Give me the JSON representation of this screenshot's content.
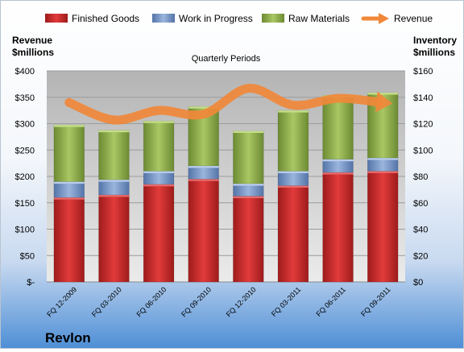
{
  "chart_data": {
    "type": "bar",
    "subtitle": "Quarterly Periods",
    "company": "Revlon",
    "categories": [
      "FQ 12-2009",
      "FQ 03-2010",
      "FQ 06-2010",
      "FQ 09-2010",
      "FQ 12-2010",
      "FQ 03-2011",
      "FQ 06-2011",
      "FQ 09-2011"
    ],
    "stacked": true,
    "series": [
      {
        "name": "Finished Goods",
        "axis": "right",
        "color": "#cc2a2a",
        "values": [
          64,
          66,
          74,
          78,
          65,
          73,
          83,
          84
        ]
      },
      {
        "name": "Work in Progress",
        "axis": "right",
        "color": "#7b9ac9",
        "values": [
          12,
          11.5,
          10,
          10,
          9.5,
          11,
          10,
          10
        ]
      },
      {
        "name": "Raw Materials",
        "axis": "right",
        "color": "#8fb04c",
        "values": [
          43,
          37.5,
          38,
          45,
          40,
          46,
          48.5,
          49.5
        ]
      },
      {
        "name": "Revenue",
        "axis": "left",
        "type": "line",
        "color": "#f0883a",
        "values": [
          340,
          307,
          325,
          318,
          367,
          335,
          348,
          340
        ]
      }
    ],
    "left_axis": {
      "title_line1": "Revenue",
      "title_line2": "$millions",
      "ylim": [
        0,
        400
      ],
      "ticks": [
        0,
        50,
        100,
        150,
        200,
        250,
        300,
        350,
        400
      ],
      "tick_labels": [
        "$-",
        "$50",
        "$100",
        "$150",
        "$200",
        "$250",
        "$300",
        "$350",
        "$400"
      ]
    },
    "right_axis": {
      "title_line1": "Inventory",
      "title_line2": "$millions",
      "ylim": [
        0,
        160
      ],
      "ticks": [
        0,
        20,
        40,
        60,
        80,
        100,
        120,
        140,
        160
      ],
      "tick_labels": [
        "$0",
        "$20",
        "$40",
        "$60",
        "$80",
        "$100",
        "$120",
        "$140",
        "$160"
      ]
    },
    "grid": true,
    "legend_position": "top"
  }
}
